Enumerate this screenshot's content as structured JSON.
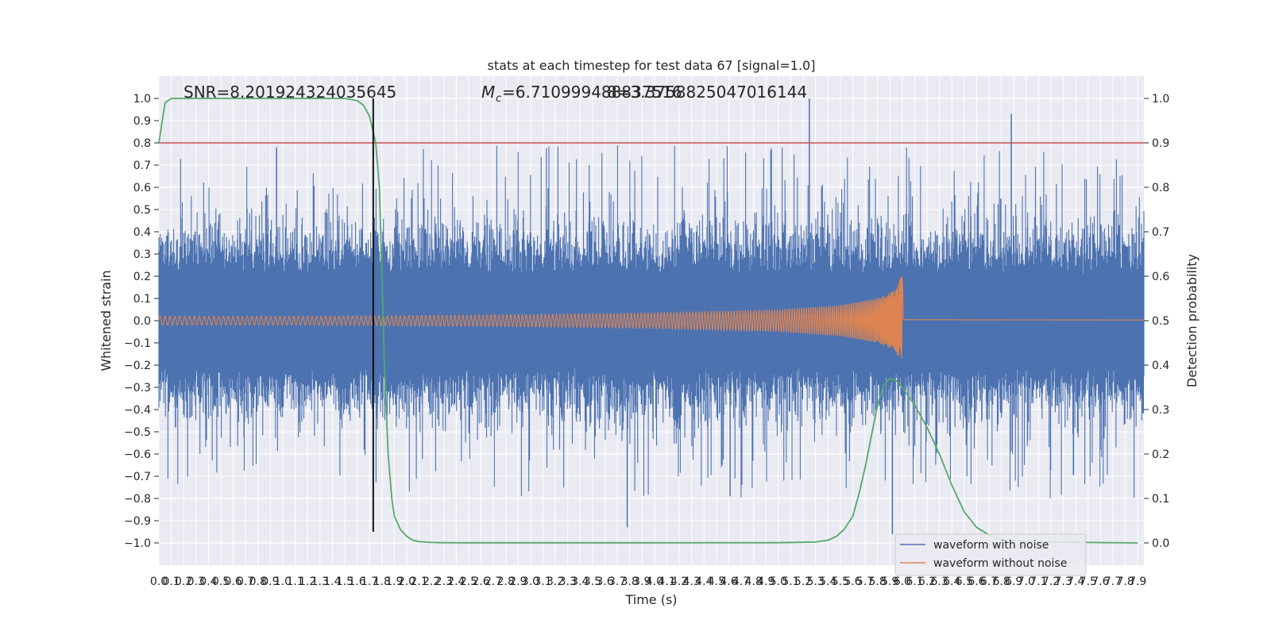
{
  "chart_data": {
    "type": "line",
    "title": "stats at each timestep for test data 67 [signal=1.0]",
    "xlabel": "Time (s)",
    "ylabel": "Whitened strain",
    "ylabel_right": "Detection probability",
    "xlim": [
      0.0,
      7.95
    ],
    "ylim": [
      -1.1,
      1.1
    ],
    "ylim_right": [
      -0.05,
      1.05
    ],
    "x_ticks": [
      0.0,
      0.1,
      0.2,
      0.3,
      0.4,
      0.5,
      0.6,
      0.7,
      0.8,
      0.9,
      1.0,
      1.1,
      1.2,
      1.3,
      1.4,
      1.5,
      1.6,
      1.7,
      1.8,
      1.9,
      2.0,
      2.1,
      2.2,
      2.3,
      2.4,
      2.5,
      2.6,
      2.7,
      2.8,
      2.9,
      3.0,
      3.1,
      3.2,
      3.3,
      3.4,
      3.5,
      3.6,
      3.7,
      3.8,
      3.9,
      4.0,
      4.1,
      4.2,
      4.3,
      4.4,
      4.5,
      4.6,
      4.7,
      4.8,
      4.9,
      5.0,
      5.1,
      5.2,
      5.3,
      5.4,
      5.5,
      5.6,
      5.7,
      5.8,
      5.9,
      6.0,
      6.1,
      6.2,
      6.3,
      6.4,
      6.5,
      6.6,
      6.7,
      6.8,
      6.9,
      7.0,
      7.1,
      7.2,
      7.3,
      7.4,
      7.5,
      7.6,
      7.7,
      7.8,
      7.9
    ],
    "y_ticks": [
      -1.0,
      -0.9,
      -0.8,
      -0.7,
      -0.6,
      -0.5,
      -0.4,
      -0.3,
      -0.2,
      -0.1,
      0.0,
      0.1,
      0.2,
      0.3,
      0.4,
      0.5,
      0.6,
      0.7,
      0.8,
      0.9,
      1.0
    ],
    "y_ticks_right": [
      0.0,
      0.1,
      0.2,
      0.3,
      0.4,
      0.5,
      0.6,
      0.7,
      0.8,
      0.9,
      1.0
    ],
    "annotations": {
      "snr": "SNR=8.201924324035645",
      "mc": "=6.710999488837516",
      "mc_symbol": "M",
      "mc_sub": "c",
      "overlap": "8=3.3758825047016144"
    },
    "threshold_y_right": 0.9,
    "vline_x": 1.73,
    "noise_envelope": {
      "approx_upper_peak": 1.0,
      "approx_lower_peak": -0.95,
      "typical_band": [
        -0.35,
        0.35
      ]
    },
    "signal_envelope": {
      "x": [
        0.0,
        1.0,
        2.0,
        3.0,
        4.0,
        5.0,
        5.5,
        5.8,
        5.95,
        6.0,
        6.01,
        7.95
      ],
      "amplitude": [
        0.02,
        0.02,
        0.023,
        0.028,
        0.035,
        0.05,
        0.07,
        0.1,
        0.14,
        0.22,
        0.005,
        0.003
      ]
    },
    "series": [
      {
        "name": "waveform with noise",
        "color": "#4c72b0"
      },
      {
        "name": "waveform without noise",
        "color": "#dd8452"
      },
      {
        "color": "#55a868",
        "axis": "right",
        "x": [
          0.0,
          0.05,
          0.1,
          0.2,
          0.5,
          1.0,
          1.5,
          1.6,
          1.65,
          1.7,
          1.75,
          1.78,
          1.8,
          1.82,
          1.85,
          1.88,
          1.9,
          1.95,
          2.0,
          2.05,
          2.1,
          2.15,
          2.2,
          2.3,
          2.5,
          3.0,
          4.0,
          5.0,
          5.3,
          5.4,
          5.47,
          5.53,
          5.6,
          5.65,
          5.7,
          5.75,
          5.8,
          5.85,
          5.9,
          5.95,
          6.0,
          6.1,
          6.2,
          6.3,
          6.4,
          6.5,
          6.6,
          6.7,
          6.8,
          7.0,
          7.5,
          7.9
        ],
        "y": [
          0.9,
          0.99,
          1.0,
          1.0,
          1.0,
          1.0,
          1.0,
          0.995,
          0.985,
          0.96,
          0.9,
          0.8,
          0.6,
          0.4,
          0.2,
          0.1,
          0.06,
          0.03,
          0.015,
          0.006,
          0.003,
          0.002,
          0.001,
          0.0005,
          0.0003,
          0.0003,
          0.0003,
          0.0005,
          0.002,
          0.006,
          0.015,
          0.03,
          0.06,
          0.11,
          0.17,
          0.24,
          0.31,
          0.355,
          0.37,
          0.365,
          0.35,
          0.31,
          0.26,
          0.2,
          0.13,
          0.07,
          0.035,
          0.018,
          0.008,
          0.003,
          0.001,
          0.0
        ]
      }
    ],
    "threshold_color": "#c44e52",
    "vline_color": "#000000",
    "legend_loc": "lower right",
    "grid": true,
    "background": "#eaeaf2"
  }
}
